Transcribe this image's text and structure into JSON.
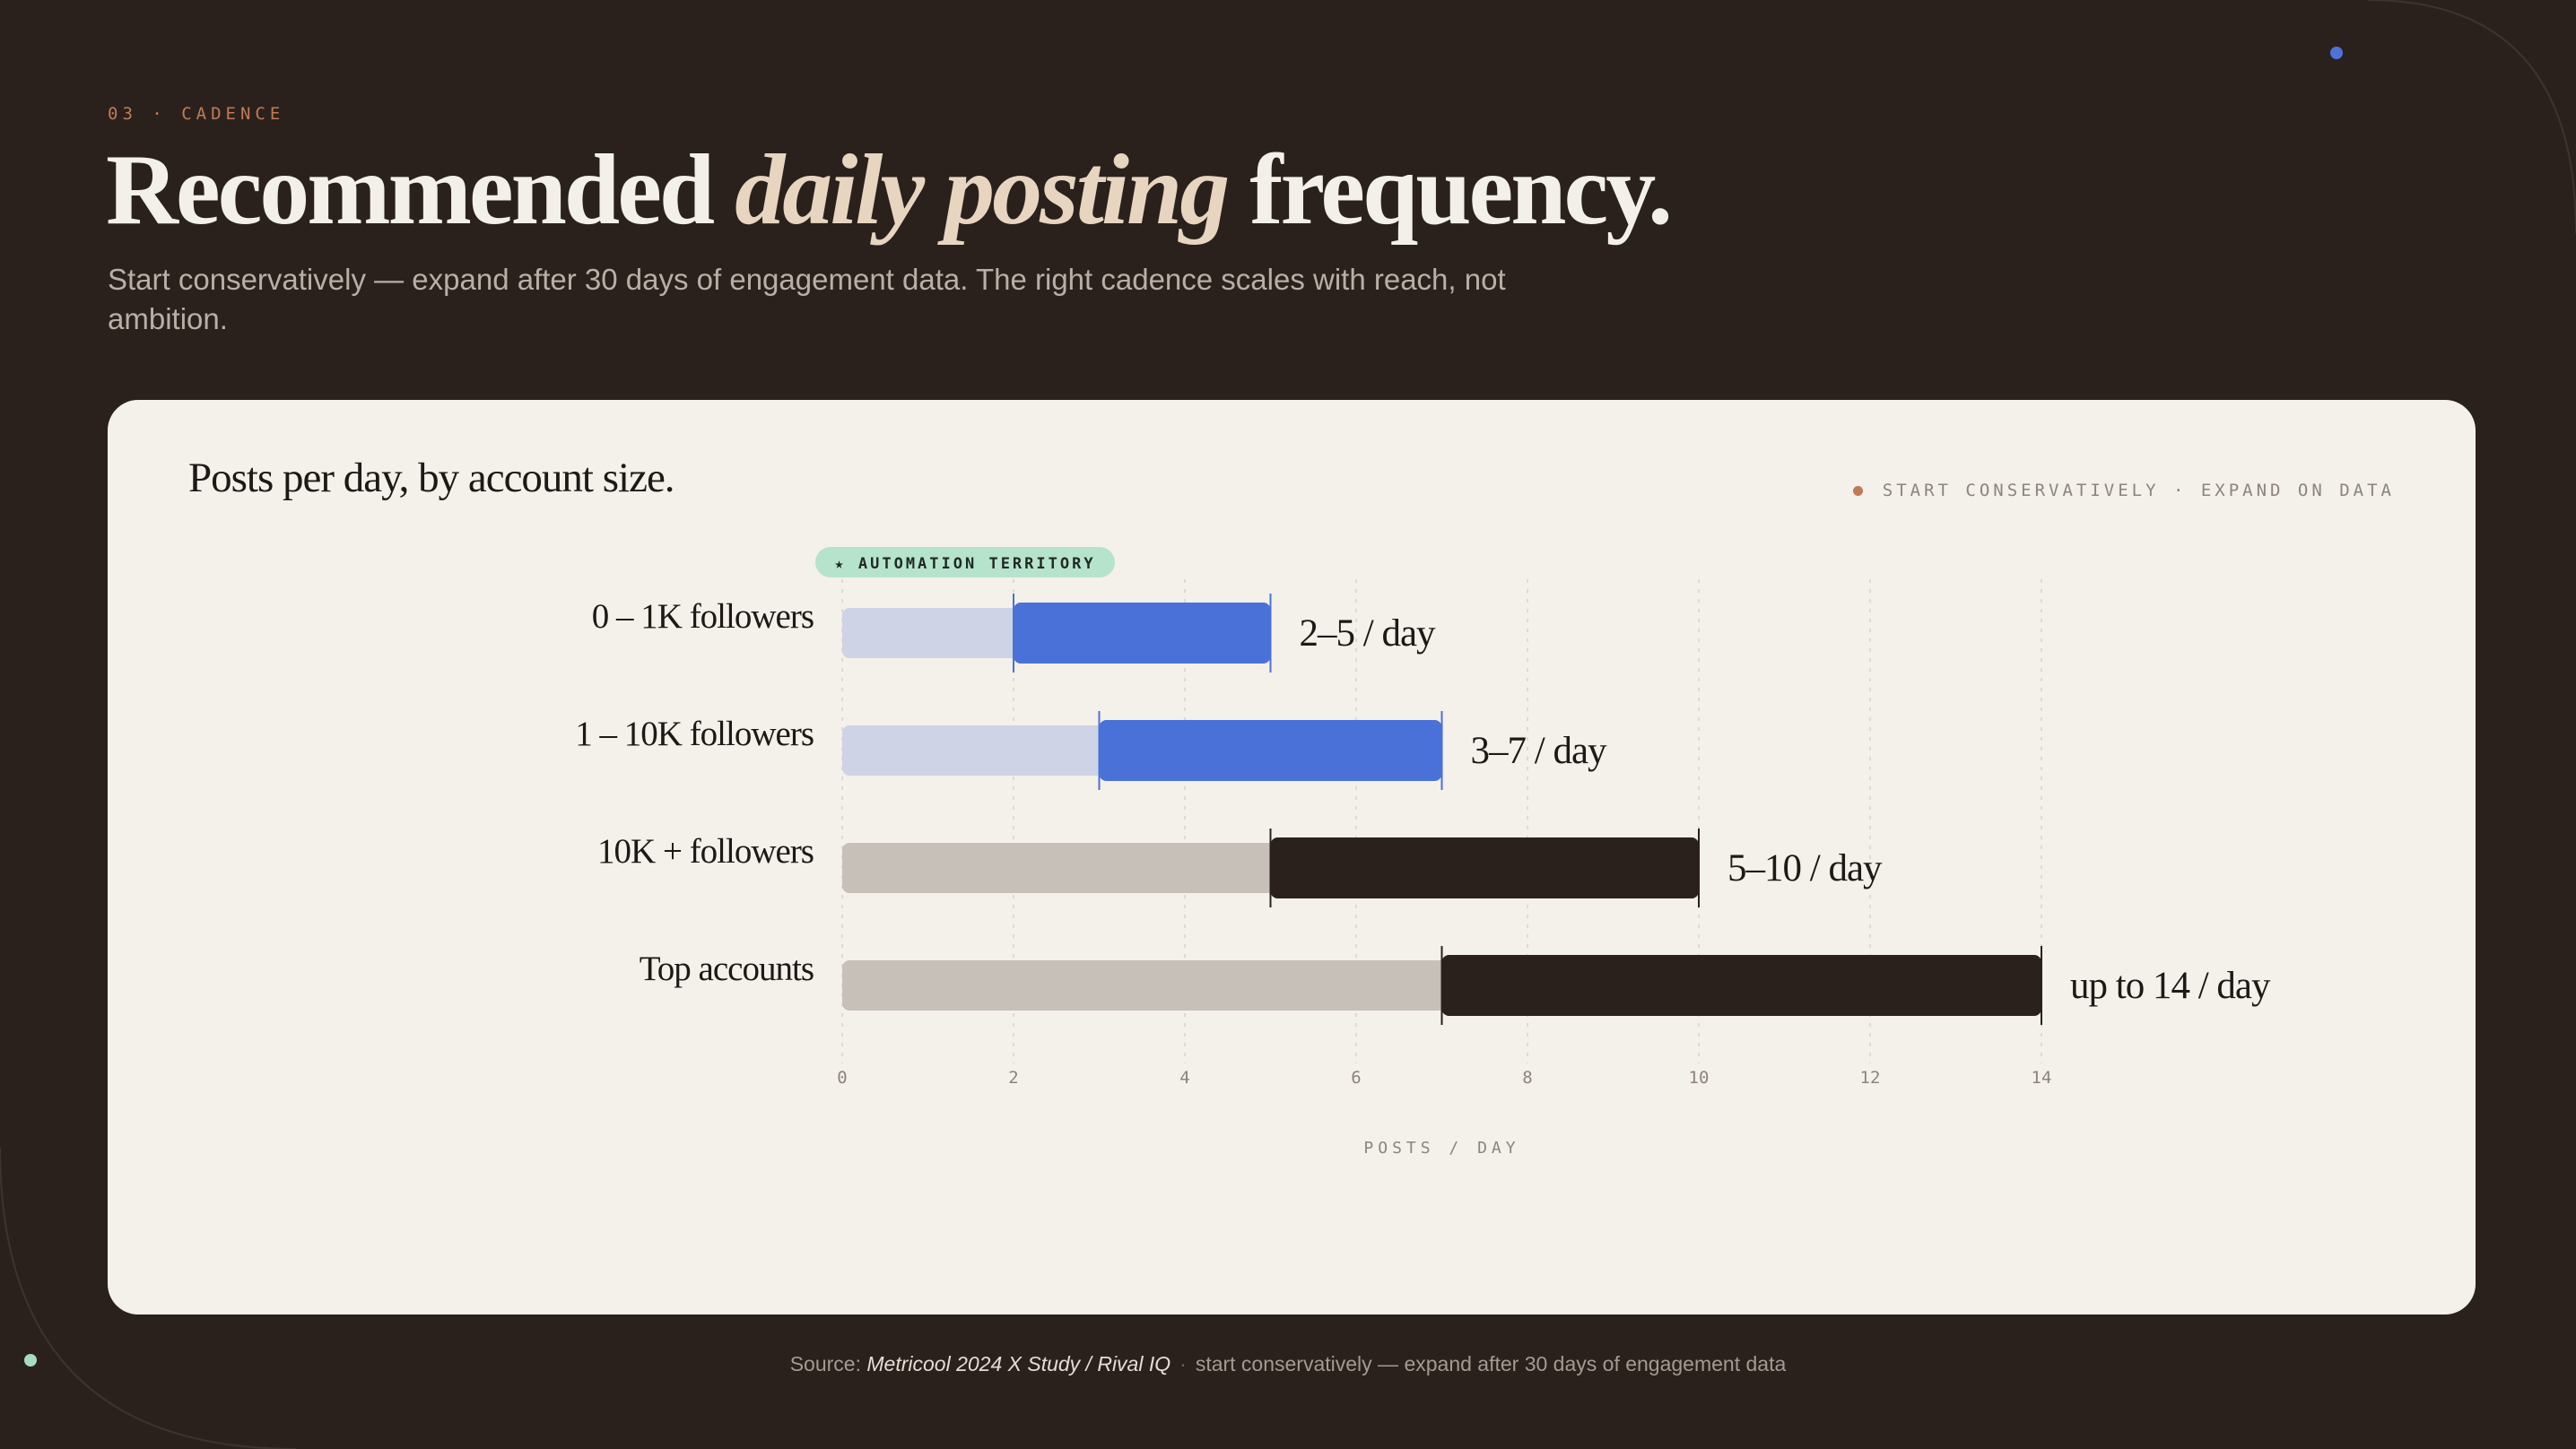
{
  "eyebrow": "03 · CADENCE",
  "headline": {
    "part1": "Recommended ",
    "emphasis": "daily posting",
    "part2": " frequency."
  },
  "lede": "Start conservatively — expand after 30 days of engagement data. The right cadence scales with reach, not ambition.",
  "card": {
    "title": "Posts per day, by account size.",
    "legend": "START CONSERVATIVELY · EXPAND ON DATA"
  },
  "chart_data": {
    "type": "bar",
    "orientation": "horizontal-range",
    "categories": [
      "0 – 1K followers",
      "1 – 10K followers",
      "10K + followers",
      "Top accounts"
    ],
    "series": [
      {
        "lower": [
          2,
          3,
          5,
          7
        ],
        "upper": [
          5,
          7,
          10,
          14
        ],
        "labels": [
          "2–5 / day",
          "3–7 / day",
          "5–10 / day",
          "up to 14 / day"
        ],
        "colors": [
          "#4a71d7",
          "#4a71d7",
          "#2a211d",
          "#2a211d"
        ],
        "track_colors": [
          "#ced3e5",
          "#ced3e5",
          "#c6c0b9",
          "#c6c0b9"
        ]
      }
    ],
    "annotation": "★ AUTOMATION TERRITORY",
    "xlabel": "POSTS / DAY",
    "ylabel": "",
    "xlim": [
      0,
      14
    ],
    "xticks": [
      0,
      2,
      4,
      6,
      8,
      10,
      12,
      14
    ],
    "grid": true,
    "legend_position": "top-right",
    "colors": {
      "accent": "#4a71d7",
      "dark": "#2a211d",
      "annotation_bg": "#b6e3cc"
    }
  },
  "footer": {
    "prefix": "Source: ",
    "source": "Metricool 2024 X Study / Rival IQ",
    "separator": "·",
    "note": "start conservatively — expand after 30 days of engagement data"
  }
}
